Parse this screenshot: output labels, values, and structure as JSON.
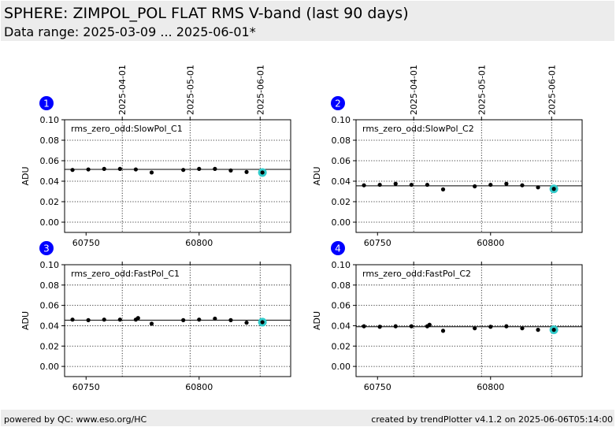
{
  "header": {
    "title": "SPHERE: ZIMPOL_POL FLAT RMS V-band (last 90 days)",
    "subtitle": "Data range: 2025-03-09 ... 2025-06-01*"
  },
  "footer": {
    "left": "powered by QC: www.eso.org/HC",
    "right": "created by trendPlotter v4.1.2 on 2025-06-06T05:14:00"
  },
  "colors": {
    "header_bg": "#ececec",
    "badge": "#0000ff",
    "point": "#000000",
    "highlight": "#33cccc"
  },
  "chart_data": [
    {
      "panel": "1",
      "type": "scatter",
      "label": "rms_zero_odd:SlowPol_C1",
      "ylabel": "ADU",
      "xlim": [
        60740.5,
        60840.5
      ],
      "ylim": [
        -0.01,
        0.1
      ],
      "xticks": [
        60750,
        60800
      ],
      "yticks": [
        "0.00",
        "0.02",
        "0.04",
        "0.06",
        "0.08",
        "0.10"
      ],
      "top_ticks": [
        {
          "label": "2025-04-01",
          "x": 60766
        },
        {
          "label": "2025-05-01",
          "x": 60796
        },
        {
          "label": "2025-06-01",
          "x": 60827
        }
      ],
      "reference_line": 0.0515,
      "x": [
        60744,
        60751,
        60758,
        60765,
        60772,
        60779,
        60793,
        60800,
        60807,
        60814,
        60821,
        60828
      ],
      "y": [
        0.051,
        0.0515,
        0.052,
        0.052,
        0.0515,
        0.0485,
        0.051,
        0.052,
        0.052,
        0.0505,
        0.049,
        0.0485
      ],
      "highlight": {
        "x": 60828,
        "y": 0.0485
      }
    },
    {
      "panel": "2",
      "type": "scatter",
      "label": "rms_zero_odd:SlowPol_C2",
      "ylabel": "ADU",
      "xlim": [
        60740.5,
        60840.5
      ],
      "ylim": [
        -0.01,
        0.1
      ],
      "xticks": [
        60750,
        60800
      ],
      "yticks": [
        "0.00",
        "0.02",
        "0.04",
        "0.06",
        "0.08",
        "0.10"
      ],
      "top_ticks": [
        {
          "label": "2025-04-01",
          "x": 60766
        },
        {
          "label": "2025-05-01",
          "x": 60796
        },
        {
          "label": "2025-06-01",
          "x": 60827
        }
      ],
      "reference_line": 0.0355,
      "x": [
        60744,
        60751,
        60758,
        60765,
        60772,
        60779,
        60793,
        60800,
        60807,
        60814,
        60821,
        60828
      ],
      "y": [
        0.036,
        0.0365,
        0.0375,
        0.0365,
        0.0365,
        0.032,
        0.035,
        0.0365,
        0.0375,
        0.036,
        0.034,
        0.0325
      ],
      "highlight": {
        "x": 60828,
        "y": 0.0325
      }
    },
    {
      "panel": "3",
      "type": "scatter",
      "label": "rms_zero_odd:FastPol_C1",
      "ylabel": "ADU",
      "xlim": [
        60740.5,
        60840.5
      ],
      "ylim": [
        -0.01,
        0.1
      ],
      "xticks": [
        60750,
        60800
      ],
      "yticks": [
        "0.00",
        "0.02",
        "0.04",
        "0.06",
        "0.08",
        "0.10"
      ],
      "top_ticks": [
        {
          "label": "2025-04-01",
          "x": 60766
        },
        {
          "label": "2025-05-01",
          "x": 60796
        },
        {
          "label": "2025-06-01",
          "x": 60827
        }
      ],
      "reference_line": 0.0455,
      "x": [
        60744,
        60751,
        60758,
        60765,
        60772,
        60773,
        60779,
        60793,
        60800,
        60807,
        60814,
        60821,
        60828
      ],
      "y": [
        0.046,
        0.0455,
        0.046,
        0.046,
        0.046,
        0.0475,
        0.042,
        0.0455,
        0.046,
        0.047,
        0.0455,
        0.043,
        0.0435
      ],
      "highlight": {
        "x": 60828,
        "y": 0.0435
      }
    },
    {
      "panel": "4",
      "type": "scatter",
      "label": "rms_zero_odd:FastPol_C2",
      "ylabel": "ADU",
      "xlim": [
        60740.5,
        60840.5
      ],
      "ylim": [
        -0.01,
        0.1
      ],
      "xticks": [
        60750,
        60800
      ],
      "yticks": [
        "0.00",
        "0.02",
        "0.04",
        "0.06",
        "0.08",
        "0.10"
      ],
      "top_ticks": [
        {
          "label": "2025-04-01",
          "x": 60766
        },
        {
          "label": "2025-05-01",
          "x": 60796
        },
        {
          "label": "2025-06-01",
          "x": 60827
        }
      ],
      "reference_line": 0.039,
      "x": [
        60744,
        60751,
        60758,
        60765,
        60772,
        60773,
        60779,
        60793,
        60800,
        60807,
        60814,
        60821,
        60828
      ],
      "y": [
        0.0395,
        0.039,
        0.0395,
        0.0395,
        0.0395,
        0.041,
        0.035,
        0.0375,
        0.039,
        0.0395,
        0.0375,
        0.036,
        0.036
      ],
      "highlight": {
        "x": 60828,
        "y": 0.036
      }
    }
  ]
}
